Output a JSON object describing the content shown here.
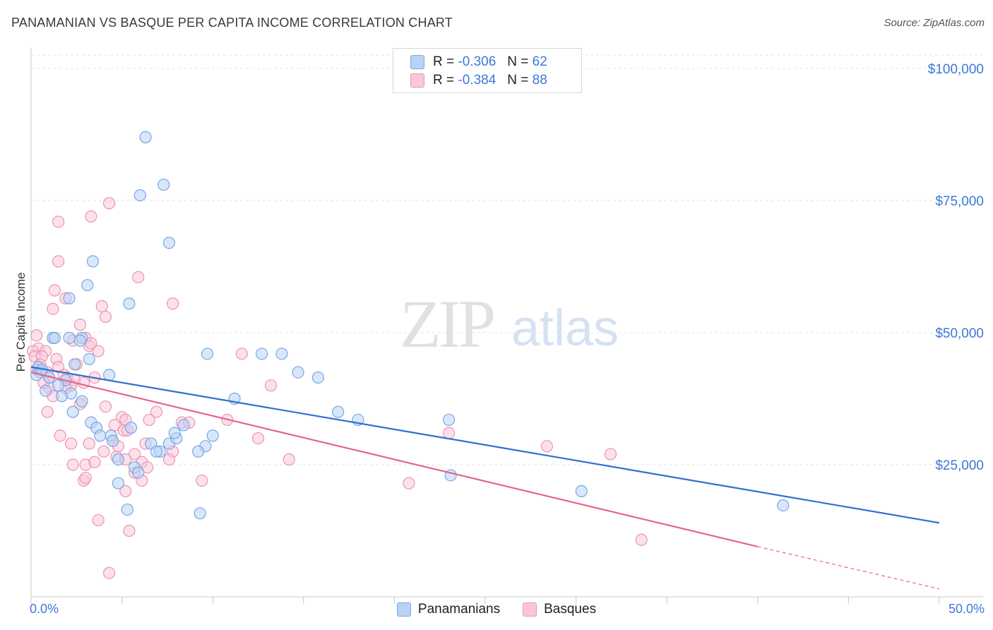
{
  "header": {
    "title": "PANAMANIAN VS BASQUE PER CAPITA INCOME CORRELATION CHART",
    "source": "Source: ZipAtlas.com"
  },
  "watermark": {
    "zip": "ZIP",
    "atlas": "atlas"
  },
  "legend": {
    "r_label": "R =",
    "n_label": "N =",
    "items": [
      {
        "name": "Panamanians",
        "r": "-0.306",
        "n": "62",
        "fill": "#b8d3f5",
        "stroke": "#7aa6e3"
      },
      {
        "name": "Basques",
        "r": "-0.384",
        "n": "88",
        "fill": "#f9c8d8",
        "stroke": "#ec93b2"
      }
    ]
  },
  "axes": {
    "ylabel": "Per Capita Income",
    "x_min_label": "0.0%",
    "x_max_label": "50.0%",
    "y_tick_labels": [
      "$100,000",
      "$75,000",
      "$50,000",
      "$25,000"
    ]
  },
  "colors": {
    "blue_line": "#2f6fd0",
    "pink_line": "#e3658f",
    "axis_text": "#3d78d8",
    "grid": "#e3e3e3"
  },
  "chart_data": {
    "type": "scatter",
    "title": "PANAMANIAN VS BASQUE PER CAPITA INCOME CORRELATION CHART",
    "xlabel": "",
    "ylabel": "Per Capita Income",
    "xlim": [
      0,
      50
    ],
    "ylim": [
      0,
      105000
    ],
    "y_ticks": [
      25000,
      50000,
      75000,
      100000
    ],
    "series": [
      {
        "name": "Panamanians",
        "trend": {
          "x": [
            0,
            50
          ],
          "y": [
            43500,
            14000
          ]
        },
        "points": [
          [
            6.3,
            87000
          ],
          [
            6.0,
            76000
          ],
          [
            7.3,
            78000
          ],
          [
            7.6,
            67000
          ],
          [
            3.4,
            63500
          ],
          [
            3.1,
            59000
          ],
          [
            2.1,
            56500
          ],
          [
            5.4,
            55500
          ],
          [
            1.2,
            49000
          ],
          [
            1.3,
            49000
          ],
          [
            2.1,
            49000
          ],
          [
            2.8,
            49000
          ],
          [
            2.7,
            48500
          ],
          [
            9.7,
            46000
          ],
          [
            12.7,
            46000
          ],
          [
            13.8,
            46000
          ],
          [
            3.2,
            45000
          ],
          [
            2.4,
            44000
          ],
          [
            0.4,
            43500
          ],
          [
            0.5,
            42500
          ],
          [
            0.3,
            42000
          ],
          [
            1.0,
            41500
          ],
          [
            4.3,
            42000
          ],
          [
            14.7,
            42500
          ],
          [
            15.8,
            41500
          ],
          [
            0.8,
            39000
          ],
          [
            1.7,
            38000
          ],
          [
            2.2,
            38500
          ],
          [
            2.8,
            37000
          ],
          [
            11.2,
            37500
          ],
          [
            2.3,
            35000
          ],
          [
            16.9,
            35000
          ],
          [
            18.0,
            33500
          ],
          [
            23.0,
            33500
          ],
          [
            3.3,
            33000
          ],
          [
            3.6,
            32000
          ],
          [
            5.5,
            32000
          ],
          [
            4.4,
            30500
          ],
          [
            3.8,
            30500
          ],
          [
            4.5,
            29500
          ],
          [
            6.6,
            29000
          ],
          [
            7.6,
            29000
          ],
          [
            8.0,
            30000
          ],
          [
            7.9,
            31000
          ],
          [
            8.4,
            32500
          ],
          [
            10.0,
            30500
          ],
          [
            9.6,
            28500
          ],
          [
            9.2,
            27500
          ],
          [
            7.1,
            27500
          ],
          [
            6.9,
            27500
          ],
          [
            4.8,
            26000
          ],
          [
            5.7,
            24500
          ],
          [
            5.9,
            23500
          ],
          [
            4.8,
            21500
          ],
          [
            23.1,
            23000
          ],
          [
            30.3,
            20000
          ],
          [
            5.3,
            16500
          ],
          [
            9.3,
            15800
          ],
          [
            41.4,
            17300
          ],
          [
            0.6,
            43000
          ],
          [
            1.9,
            41000
          ],
          [
            1.5,
            40000
          ]
        ]
      },
      {
        "name": "Basques",
        "trend": {
          "x": [
            0,
            40
          ],
          "y": [
            42500,
            9500
          ]
        },
        "trend_extension": {
          "x": [
            40,
            50
          ],
          "y": [
            9500,
            1500
          ]
        },
        "points": [
          [
            4.3,
            74500
          ],
          [
            3.3,
            72000
          ],
          [
            1.5,
            71000
          ],
          [
            1.5,
            63500
          ],
          [
            5.9,
            60500
          ],
          [
            1.3,
            58000
          ],
          [
            1.9,
            56500
          ],
          [
            1.2,
            54500
          ],
          [
            3.9,
            55000
          ],
          [
            7.8,
            55500
          ],
          [
            4.1,
            53000
          ],
          [
            2.7,
            51500
          ],
          [
            0.3,
            49500
          ],
          [
            3.0,
            49000
          ],
          [
            2.3,
            48500
          ],
          [
            3.2,
            47500
          ],
          [
            0.4,
            47000
          ],
          [
            0.1,
            46500
          ],
          [
            0.8,
            46500
          ],
          [
            3.7,
            46500
          ],
          [
            0.2,
            45500
          ],
          [
            0.6,
            45500
          ],
          [
            1.4,
            45000
          ],
          [
            11.6,
            46000
          ],
          [
            0.5,
            44000
          ],
          [
            1.5,
            43500
          ],
          [
            0.9,
            42500
          ],
          [
            1.0,
            41500
          ],
          [
            1.8,
            42000
          ],
          [
            2.0,
            41500
          ],
          [
            2.4,
            41000
          ],
          [
            3.5,
            41500
          ],
          [
            2.9,
            40500
          ],
          [
            2.2,
            40000
          ],
          [
            1.0,
            39500
          ],
          [
            1.9,
            39500
          ],
          [
            13.2,
            40000
          ],
          [
            4.1,
            36000
          ],
          [
            0.9,
            35000
          ],
          [
            6.9,
            35000
          ],
          [
            5.0,
            34000
          ],
          [
            5.2,
            33500
          ],
          [
            6.5,
            33500
          ],
          [
            10.8,
            33500
          ],
          [
            8.3,
            33000
          ],
          [
            8.7,
            33000
          ],
          [
            4.6,
            32500
          ],
          [
            5.1,
            31500
          ],
          [
            5.3,
            31500
          ],
          [
            1.6,
            30500
          ],
          [
            12.5,
            30000
          ],
          [
            23.0,
            31000
          ],
          [
            2.2,
            29000
          ],
          [
            3.2,
            29000
          ],
          [
            4.5,
            29500
          ],
          [
            6.3,
            29000
          ],
          [
            4.0,
            27500
          ],
          [
            5.7,
            27000
          ],
          [
            7.8,
            27500
          ],
          [
            28.4,
            28500
          ],
          [
            31.9,
            27000
          ],
          [
            4.7,
            26500
          ],
          [
            5.2,
            26000
          ],
          [
            6.1,
            25500
          ],
          [
            7.6,
            26000
          ],
          [
            2.3,
            25000
          ],
          [
            3.0,
            25000
          ],
          [
            3.5,
            25500
          ],
          [
            14.2,
            26000
          ],
          [
            5.7,
            23500
          ],
          [
            2.9,
            22000
          ],
          [
            6.1,
            22000
          ],
          [
            9.4,
            22000
          ],
          [
            20.8,
            21500
          ],
          [
            5.2,
            20000
          ],
          [
            3.7,
            14500
          ],
          [
            5.4,
            12500
          ],
          [
            4.3,
            4500
          ],
          [
            33.6,
            10800
          ],
          [
            3.0,
            22500
          ],
          [
            4.8,
            28500
          ],
          [
            2.7,
            36500
          ],
          [
            1.2,
            38000
          ],
          [
            0.7,
            40500
          ],
          [
            2.5,
            44000
          ],
          [
            0.3,
            43000
          ],
          [
            3.3,
            48000
          ],
          [
            6.4,
            24500
          ]
        ]
      }
    ]
  }
}
